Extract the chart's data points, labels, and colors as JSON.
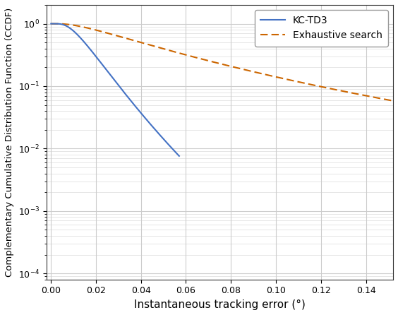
{
  "title": "",
  "xlabel": "Instantaneous tracking error (°)",
  "ylabel": "Complementary Cumulative Distribution Function (CCDF)",
  "legend_kctd3": "KC-TD3",
  "legend_exhaustive": "Exhaustive search",
  "kctd3_color": "#4472C4",
  "exhaustive_color": "#CC6600",
  "xlim": [
    -0.002,
    0.152
  ],
  "ylim_log": [
    8e-05,
    2.0
  ],
  "xticks": [
    0.0,
    0.02,
    0.04,
    0.06,
    0.08,
    0.1,
    0.12,
    0.14
  ],
  "grid_color": "#cccccc",
  "bg_color": "#ffffff",
  "figsize": [
    5.64,
    4.46
  ],
  "dpi": 100,
  "kctd3_lw": 1.5,
  "exhaustive_lw": 1.5
}
